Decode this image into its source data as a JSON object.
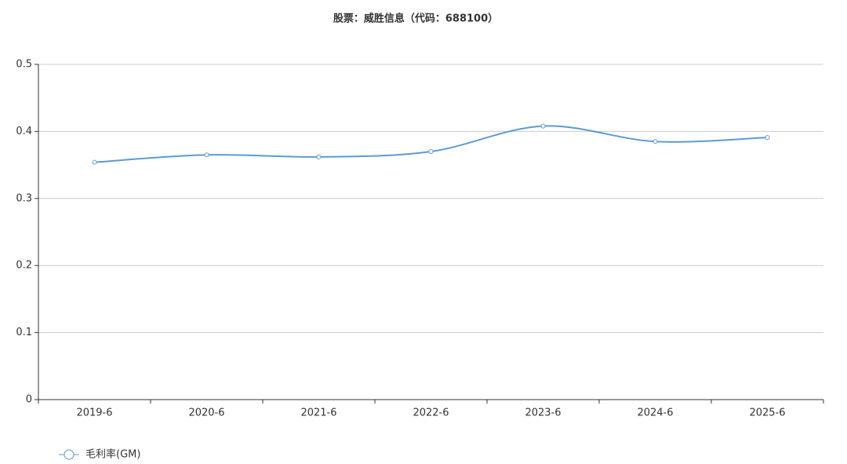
{
  "chart_data": {
    "type": "line",
    "title": "股票：威胜信息（代码：688100）",
    "categories": [
      "2019-6",
      "2020-6",
      "2021-6",
      "2022-6",
      "2023-6",
      "2024-6",
      "2025-6"
    ],
    "series": [
      {
        "name": "毛利率(GM)",
        "color": "#5b9bd5",
        "values": [
          0.354,
          0.365,
          0.362,
          0.37,
          0.408,
          0.385,
          0.391
        ]
      }
    ],
    "ylim": [
      0,
      0.5
    ],
    "yticks": [
      0,
      0.1,
      0.2,
      0.3,
      0.4,
      0.5
    ],
    "grid": true,
    "smooth": true,
    "legend": "bottom-left"
  }
}
